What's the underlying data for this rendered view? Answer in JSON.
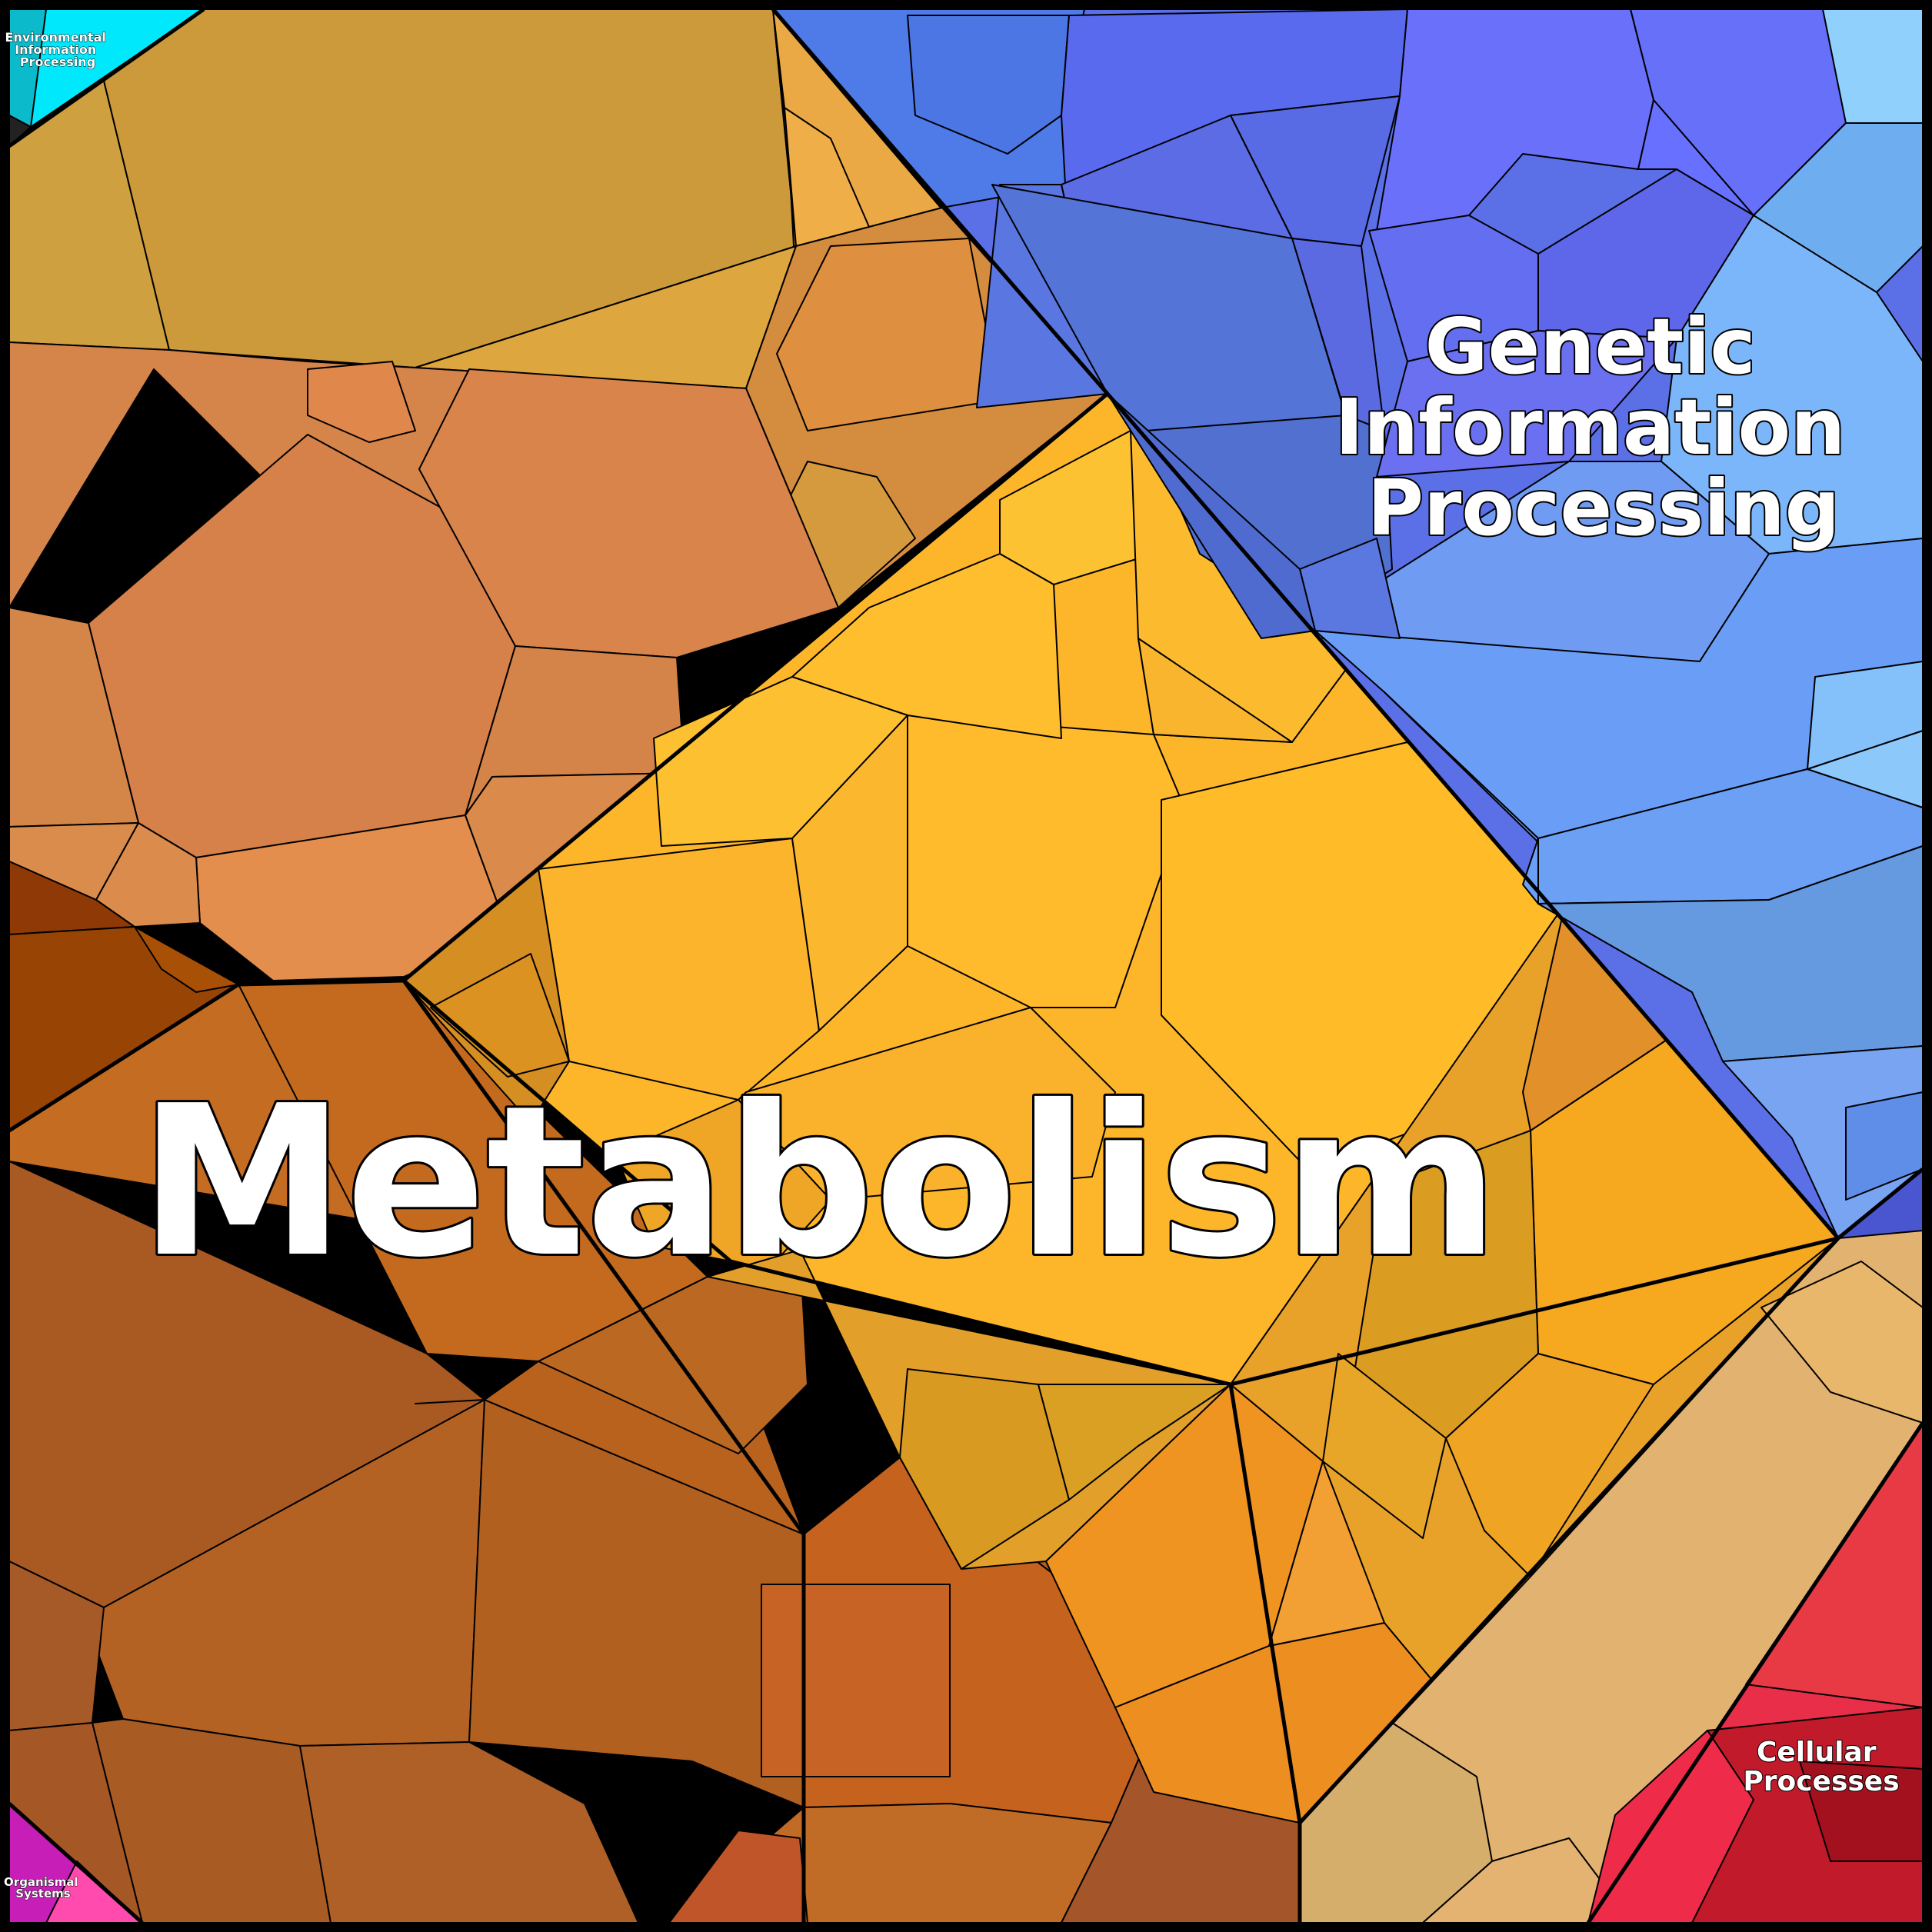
{
  "diagram": {
    "type": "voronoi-treemap",
    "categories": [
      {
        "id": "metabolism",
        "label": "Metabolism",
        "color": "#E8A33A"
      },
      {
        "id": "genetic",
        "label": [
          "Genetic",
          "Information",
          "Processing"
        ],
        "color": "#6B8CF0"
      },
      {
        "id": "environmental",
        "label": [
          "Environmental",
          "Information",
          "Processing"
        ],
        "color": "#00E5FF"
      },
      {
        "id": "cellular",
        "label": [
          "Cellular",
          "Processes"
        ],
        "color": "#E8344A"
      },
      {
        "id": "organismal",
        "label": [
          "Organismal",
          "Systems"
        ],
        "color": "#D030C0"
      }
    ]
  }
}
